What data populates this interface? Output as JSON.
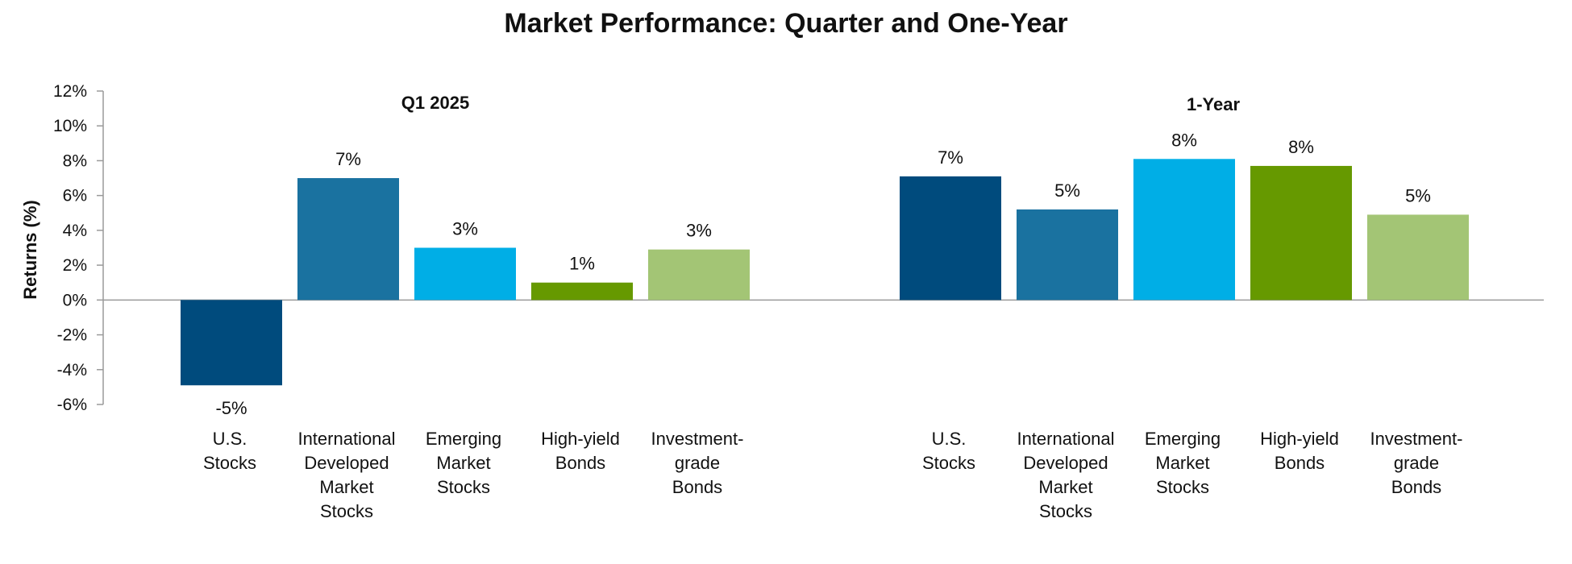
{
  "chart_data": {
    "type": "bar",
    "title": "Market Performance: Quarter and One-Year",
    "ylabel": "Returns (%)",
    "xlabel": "",
    "ylim": [
      -6,
      12
    ],
    "yticks": [
      12,
      10,
      8,
      6,
      4,
      2,
      0,
      -2,
      -4,
      -6
    ],
    "ytick_labels": [
      "12%",
      "10%",
      "8%",
      "6%",
      "4%",
      "2%",
      "0%",
      "-2%",
      "-4%",
      "-6%"
    ],
    "grid": false,
    "categories": [
      [
        "U.S.",
        "Stocks"
      ],
      [
        "International",
        "Developed",
        "Market",
        "Stocks"
      ],
      [
        "Emerging",
        "Market",
        "Stocks"
      ],
      [
        "High-yield",
        "Bonds"
      ],
      [
        "Investment-",
        "grade",
        "Bonds"
      ]
    ],
    "series": [
      {
        "name": "Q1 2025",
        "values": [
          -4.9,
          7.0,
          3.0,
          1.0,
          2.9
        ],
        "labels": [
          "-5%",
          "7%",
          "3%",
          "1%",
          "3%"
        ]
      },
      {
        "name": "1-Year",
        "values": [
          7.1,
          5.2,
          8.1,
          7.7,
          4.9
        ],
        "labels": [
          "7%",
          "5%",
          "8%",
          "8%",
          "5%"
        ]
      }
    ],
    "colors": [
      "#004b7d",
      "#1a72a0",
      "#00aee6",
      "#669900",
      "#a3c575"
    ]
  }
}
